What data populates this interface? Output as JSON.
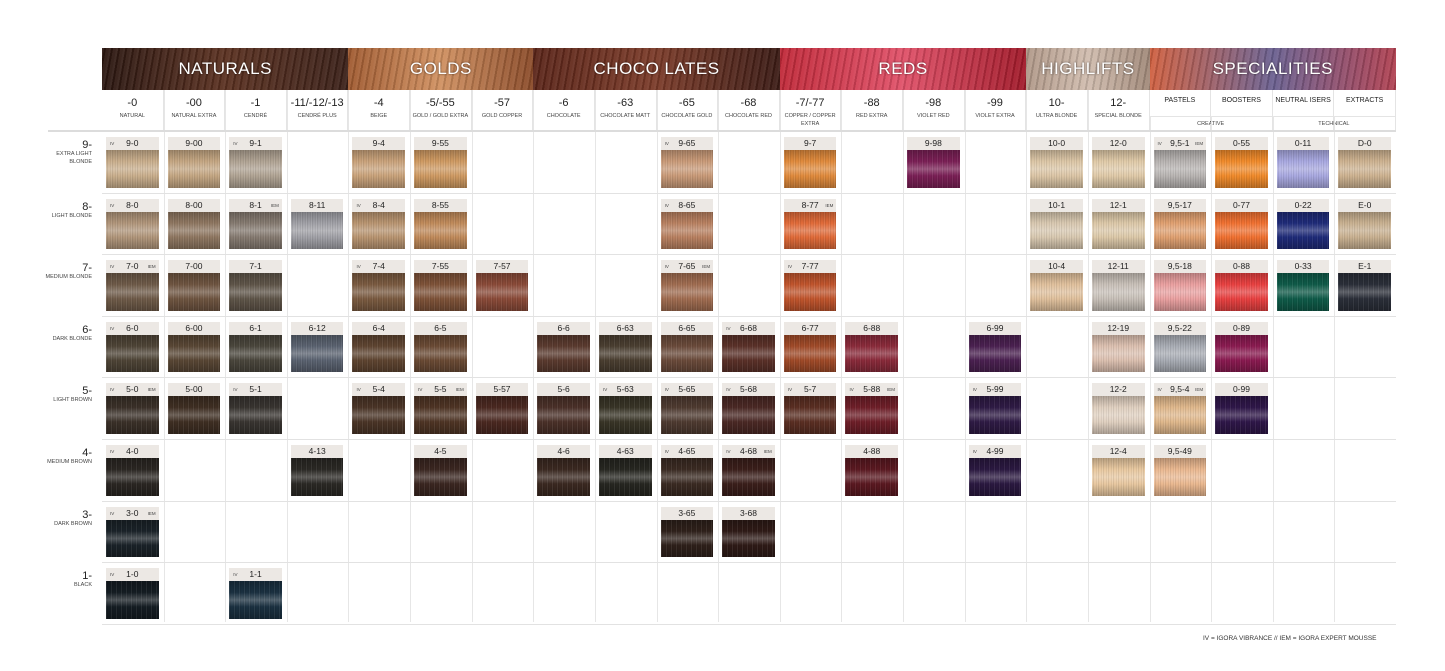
{
  "groups": [
    {
      "label": "NATURALS",
      "span": [
        0,
        3
      ],
      "colors": [
        "#2a1610",
        "#5a3020",
        "#3a2018"
      ]
    },
    {
      "label": "GOLDS",
      "span": [
        4,
        6
      ],
      "colors": [
        "#a05a30",
        "#d09060",
        "#8a4a28"
      ]
    },
    {
      "label": "CHOCO LATES",
      "span": [
        7,
        10
      ],
      "colors": [
        "#5a2418",
        "#7a3a28",
        "#3a1a14"
      ]
    },
    {
      "label": "REDS",
      "span": [
        11,
        14
      ],
      "colors": [
        "#c02838",
        "#e05068",
        "#a01828"
      ]
    },
    {
      "label": "HIGHLIFTS",
      "span": [
        15,
        16
      ],
      "colors": [
        "#b09888",
        "#d0bcae",
        "#a08878"
      ]
    },
    {
      "label": "SPECIALITIES",
      "span": [
        17,
        20
      ],
      "colors": [
        "#d06040",
        "#6a6090",
        "#b04050"
      ]
    }
  ],
  "columns": [
    {
      "code": "-0",
      "desc": "NATURAL"
    },
    {
      "code": "-00",
      "desc": "NATURAL EXTRA"
    },
    {
      "code": "-1",
      "desc": "CENDRÉ"
    },
    {
      "code": "-11/-12/-13",
      "desc": "CENDRÉ PLUS"
    },
    {
      "code": "-4",
      "desc": "BEIGE"
    },
    {
      "code": "-5/-55",
      "desc": "GOLD / GOLD EXTRA"
    },
    {
      "code": "-57",
      "desc": "GOLD COPPER"
    },
    {
      "code": "-6",
      "desc": "CHOCOLATE"
    },
    {
      "code": "-63",
      "desc": "CHOCOLATE MATT"
    },
    {
      "code": "-65",
      "desc": "CHOCOLATE GOLD"
    },
    {
      "code": "-68",
      "desc": "CHOCOLATE RED"
    },
    {
      "code": "-7/-77",
      "desc": "COPPER / COPPER EXTRA"
    },
    {
      "code": "-88",
      "desc": "RED EXTRA"
    },
    {
      "code": "-98",
      "desc": "VIOLET RED"
    },
    {
      "code": "-99",
      "desc": "VIOLET EXTRA"
    },
    {
      "code": "10-",
      "desc": "ULTRA BLONDE"
    },
    {
      "code": "12-",
      "desc": "SPECIAL BLONDE"
    },
    {
      "code": "PASTELS",
      "desc": ""
    },
    {
      "code": "BOOSTERS",
      "desc": ""
    },
    {
      "code": "NEUTRAL ISERS",
      "desc": ""
    },
    {
      "code": "EXTRACTS",
      "desc": ""
    }
  ],
  "subgroups": [
    {
      "label": "CREATIVE",
      "span": [
        17,
        18
      ]
    },
    {
      "label": "TECHNICAL",
      "span": [
        19,
        20
      ]
    }
  ],
  "rows": [
    {
      "level": "9-",
      "desc": "EXTRA LIGHT BLONDE",
      "cells": [
        [
          "9-0",
          "#c9ae8c",
          "IV"
        ],
        [
          "9-00",
          "#c4a682",
          ""
        ],
        [
          "9-1",
          "#b0a393",
          "IV"
        ],
        null,
        [
          "9-4",
          "#c9a27a",
          ""
        ],
        [
          "9-55",
          "#cf9a62",
          ""
        ],
        null,
        null,
        null,
        [
          "9-65",
          "#c99a78",
          "IV"
        ],
        null,
        [
          "9-7",
          "#e08a3c",
          ""
        ],
        null,
        [
          "9-98",
          "#7a1f55",
          ""
        ],
        null,
        [
          "10-0",
          "#dcc6a6",
          ""
        ],
        [
          "12-0",
          "#e0caa8",
          ""
        ],
        [
          "9,5-1",
          "#b8b4b2",
          "IV IEM"
        ],
        [
          "0-55",
          "#f08a2a",
          ""
        ],
        [
          "0-11",
          "#a8a8e0",
          ""
        ],
        [
          "D-0",
          "#cdb290",
          ""
        ]
      ]
    },
    {
      "level": "8-",
      "desc": "LIGHT BLONDE",
      "cells": [
        [
          "8-0",
          "#b0957a",
          "IV"
        ],
        [
          "8-00",
          "#8e7660",
          ""
        ],
        [
          "8-1",
          "#857a70",
          "IEM"
        ],
        [
          "8-11",
          "#a0a0a6",
          ""
        ],
        [
          "8-4",
          "#b89470",
          "IV"
        ],
        [
          "8-55",
          "#c08a5a",
          ""
        ],
        null,
        null,
        null,
        [
          "8-65",
          "#b88060",
          "IV"
        ],
        null,
        [
          "8-77",
          "#e06a38",
          "IEM"
        ],
        null,
        null,
        null,
        [
          "10-1",
          "#d8c8b0",
          ""
        ],
        [
          "12-1",
          "#dcc8a8",
          ""
        ],
        [
          "9,5-17",
          "#e0a070",
          ""
        ],
        [
          "0-77",
          "#f07030",
          ""
        ],
        [
          "0-22",
          "#1e2a78",
          ""
        ],
        [
          "E-0",
          "#c8b090",
          ""
        ]
      ]
    },
    {
      "level": "7-",
      "desc": "MEDIUM BLONDE",
      "cells": [
        [
          "7-0",
          "#6e5a48",
          "IV IEM"
        ],
        [
          "7-00",
          "#6e5440",
          ""
        ],
        [
          "7-1",
          "#5e5448",
          ""
        ],
        null,
        [
          "7-4",
          "#7a5a40",
          "IV"
        ],
        [
          "7-55",
          "#7e5238",
          ""
        ],
        [
          "7-57",
          "#8a4a38",
          ""
        ],
        null,
        null,
        [
          "7-65",
          "#a06c50",
          "IV IEM"
        ],
        null,
        [
          "7-77",
          "#c0542c",
          "IV"
        ],
        null,
        null,
        null,
        [
          "10-4",
          "#e0c09c",
          ""
        ],
        [
          "12-11",
          "#c8c0b8",
          ""
        ],
        [
          "9,5-18",
          "#eaa0a0",
          ""
        ],
        [
          "0-88",
          "#e84040",
          ""
        ],
        [
          "0-33",
          "#0e5a48",
          ""
        ],
        [
          "E-1",
          "#2a2e38",
          ""
        ]
      ]
    },
    {
      "level": "6-",
      "desc": "DARK BLONDE",
      "cells": [
        [
          "6-0",
          "#4e4436",
          "IV"
        ],
        [
          "6-00",
          "#584634",
          ""
        ],
        [
          "6-1",
          "#4a463c",
          ""
        ],
        [
          "6-12",
          "#5a6270",
          ""
        ],
        [
          "6-4",
          "#5e4430",
          ""
        ],
        [
          "6-5",
          "#6a4a34",
          ""
        ],
        null,
        [
          "6-6",
          "#5a3a2e",
          ""
        ],
        [
          "6-63",
          "#4a3e30",
          ""
        ],
        [
          "6-65",
          "#6a4a3a",
          ""
        ],
        [
          "6-68",
          "#5a3028",
          "IV"
        ],
        [
          "6-77",
          "#a04a28",
          ""
        ],
        [
          "6-88",
          "#8a2a3a",
          ""
        ],
        null,
        [
          "6-99",
          "#4a2050",
          ""
        ],
        null,
        [
          "12-19",
          "#dcc0b0",
          ""
        ],
        [
          "9,5-22",
          "#a8acb4",
          ""
        ],
        [
          "0-89",
          "#8a1a50",
          ""
        ],
        null,
        null
      ]
    },
    {
      "level": "5-",
      "desc": "LIGHT BROWN",
      "cells": [
        [
          "5-0",
          "#3a3028",
          "IV IEM"
        ],
        [
          "5-00",
          "#3e2e22",
          ""
        ],
        [
          "5-1",
          "#383430",
          "IV"
        ],
        null,
        [
          "5-4",
          "#4a3426",
          "IV"
        ],
        [
          "5-5",
          "#4e3424",
          "IV IEM"
        ],
        [
          "5-57",
          "#4a2820",
          ""
        ],
        [
          "5-6",
          "#4a3028",
          ""
        ],
        [
          "5-63",
          "#383426",
          "IV"
        ],
        [
          "5-65",
          "#4e3a30",
          "IV"
        ],
        [
          "5-68",
          "#4a2824",
          "IV"
        ],
        [
          "5-7",
          "#5a2e22",
          "IV"
        ],
        [
          "5-88",
          "#6e1e28",
          "IV IEM"
        ],
        null,
        [
          "5-99",
          "#2e1a44",
          "IV"
        ],
        null,
        [
          "12-2",
          "#e0d0c0",
          ""
        ],
        [
          "9,5-4",
          "#e0b88c",
          "IV IEM"
        ],
        [
          "0-99",
          "#2e1648",
          ""
        ],
        null,
        null
      ]
    },
    {
      "level": "4-",
      "desc": "MEDIUM BROWN",
      "cells": [
        [
          "4-0",
          "#2a2622",
          "IV"
        ],
        null,
        null,
        [
          "4-13",
          "#2a2824",
          ""
        ],
        null,
        [
          "4-5",
          "#3a2620",
          ""
        ],
        null,
        [
          "4-6",
          "#3a2820",
          ""
        ],
        [
          "4-63",
          "#262620",
          ""
        ],
        [
          "4-65",
          "#3a2a22",
          "IV"
        ],
        [
          "4-68",
          "#3a1e1a",
          "IV IEM"
        ],
        null,
        [
          "4-88",
          "#5a1820",
          ""
        ],
        null,
        [
          "4-99",
          "#2a1840",
          "IV"
        ],
        null,
        [
          "12-4",
          "#e8c8a0",
          ""
        ],
        [
          "9,5-49",
          "#eab890",
          ""
        ],
        null,
        null,
        null
      ]
    },
    {
      "level": "3-",
      "desc": "DARK BROWN",
      "cells": [
        [
          "3-0",
          "#1a2228",
          "IV IEM"
        ],
        null,
        null,
        null,
        null,
        null,
        null,
        null,
        null,
        [
          "3-65",
          "#2e201a",
          ""
        ],
        [
          "3-68",
          "#2e1a16",
          ""
        ],
        null,
        null,
        null,
        null,
        null,
        null,
        null,
        null,
        null,
        null
      ]
    },
    {
      "level": "1-",
      "desc": "BLACK",
      "cells": [
        [
          "1-0",
          "#141c22",
          "IV"
        ],
        null,
        [
          "1-1",
          "#1a3040",
          "IV"
        ],
        null,
        null,
        null,
        null,
        null,
        null,
        null,
        null,
        null,
        null,
        null,
        null,
        null,
        null,
        null,
        null,
        null,
        null
      ]
    }
  ],
  "tag_labels": {
    "IV": "IV",
    "IEM": "IEM"
  },
  "legend": "IV = IGORA VIBRANCE   //   IEM = IGORA EXPERT MOUSSE"
}
